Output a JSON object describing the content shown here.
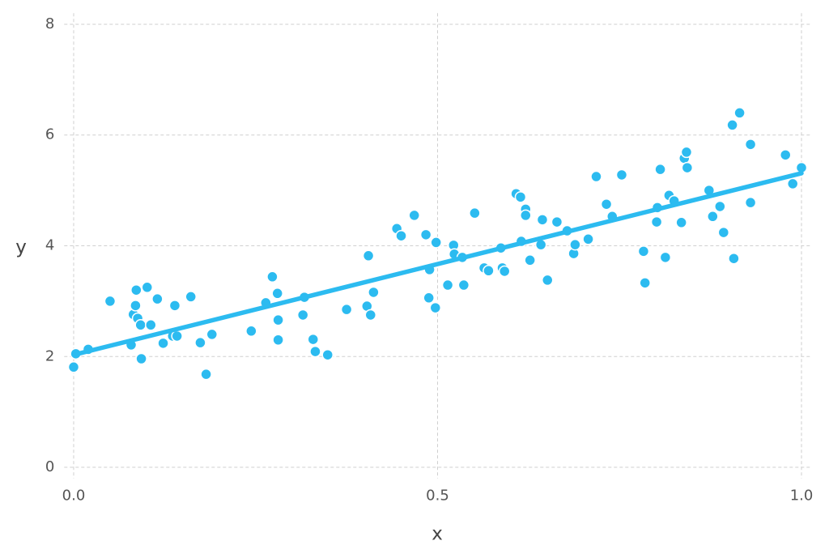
{
  "chart_data": {
    "type": "scatter",
    "x_label": "x",
    "y_label": "y",
    "xlim": [
      -0.013,
      1.013
    ],
    "ylim": [
      -0.2,
      8.2
    ],
    "xticks": [
      {
        "value": 0,
        "label": "0.0"
      },
      0.5,
      {
        "value": 1,
        "label": "1.0"
      }
    ],
    "yticks": [
      0,
      2,
      4,
      6,
      8
    ],
    "grid": true,
    "series": [
      {
        "type": "scatter",
        "color": "#2cbbf0",
        "x": [
          0.0,
          0.003,
          0.02,
          0.05,
          0.079,
          0.082,
          0.085,
          0.086,
          0.088,
          0.092,
          0.093,
          0.101,
          0.106,
          0.115,
          0.123,
          0.136,
          0.139,
          0.142,
          0.161,
          0.174,
          0.182,
          0.19,
          0.244,
          0.264,
          0.273,
          0.28,
          0.281,
          0.281,
          0.317,
          0.315,
          0.329,
          0.332,
          0.349,
          0.375,
          0.405,
          0.403,
          0.408,
          0.412,
          0.444,
          0.45,
          0.468,
          0.484,
          0.489,
          0.488,
          0.498,
          0.497,
          0.514,
          0.522,
          0.523,
          0.534,
          0.536,
          0.551,
          0.564,
          0.57,
          0.587,
          0.589,
          0.592,
          0.608,
          0.614,
          0.615,
          0.621,
          0.621,
          0.627,
          0.642,
          0.644,
          0.651,
          0.664,
          0.678,
          0.687,
          0.689,
          0.707,
          0.718,
          0.732,
          0.74,
          0.753,
          0.783,
          0.785,
          0.801,
          0.802,
          0.806,
          0.813,
          0.818,
          0.825,
          0.835,
          0.839,
          0.842,
          0.843,
          0.873,
          0.878,
          0.888,
          0.893,
          0.905,
          0.907,
          0.915,
          0.93,
          0.93,
          0.978,
          0.988,
          1.0
        ],
        "y": [
          1.81,
          2.05,
          2.13,
          3.0,
          2.21,
          2.76,
          2.92,
          3.2,
          2.69,
          2.57,
          1.96,
          3.25,
          2.57,
          3.04,
          2.24,
          2.37,
          2.92,
          2.37,
          3.08,
          2.25,
          1.68,
          2.4,
          2.46,
          2.97,
          3.44,
          3.14,
          2.66,
          2.3,
          3.07,
          2.75,
          2.31,
          2.09,
          2.03,
          2.85,
          3.82,
          2.91,
          2.75,
          3.16,
          4.31,
          4.18,
          4.55,
          4.2,
          3.57,
          3.06,
          4.06,
          2.88,
          3.29,
          4.01,
          3.85,
          3.79,
          3.29,
          4.59,
          3.6,
          3.55,
          3.96,
          3.6,
          3.54,
          4.94,
          4.88,
          4.08,
          4.66,
          4.55,
          3.74,
          4.02,
          4.47,
          3.38,
          4.43,
          4.27,
          3.86,
          4.02,
          4.12,
          5.25,
          4.75,
          4.53,
          5.28,
          3.9,
          3.33,
          4.43,
          4.69,
          5.38,
          3.79,
          4.91,
          4.81,
          4.42,
          5.58,
          5.69,
          5.41,
          5.0,
          4.53,
          4.71,
          4.24,
          6.18,
          3.77,
          6.4,
          5.83,
          4.78,
          5.64,
          5.12,
          5.41
        ]
      },
      {
        "type": "line",
        "color": "#2cbbf0",
        "x": [
          0,
          1
        ],
        "y": [
          2.03,
          5.31
        ]
      }
    ]
  }
}
